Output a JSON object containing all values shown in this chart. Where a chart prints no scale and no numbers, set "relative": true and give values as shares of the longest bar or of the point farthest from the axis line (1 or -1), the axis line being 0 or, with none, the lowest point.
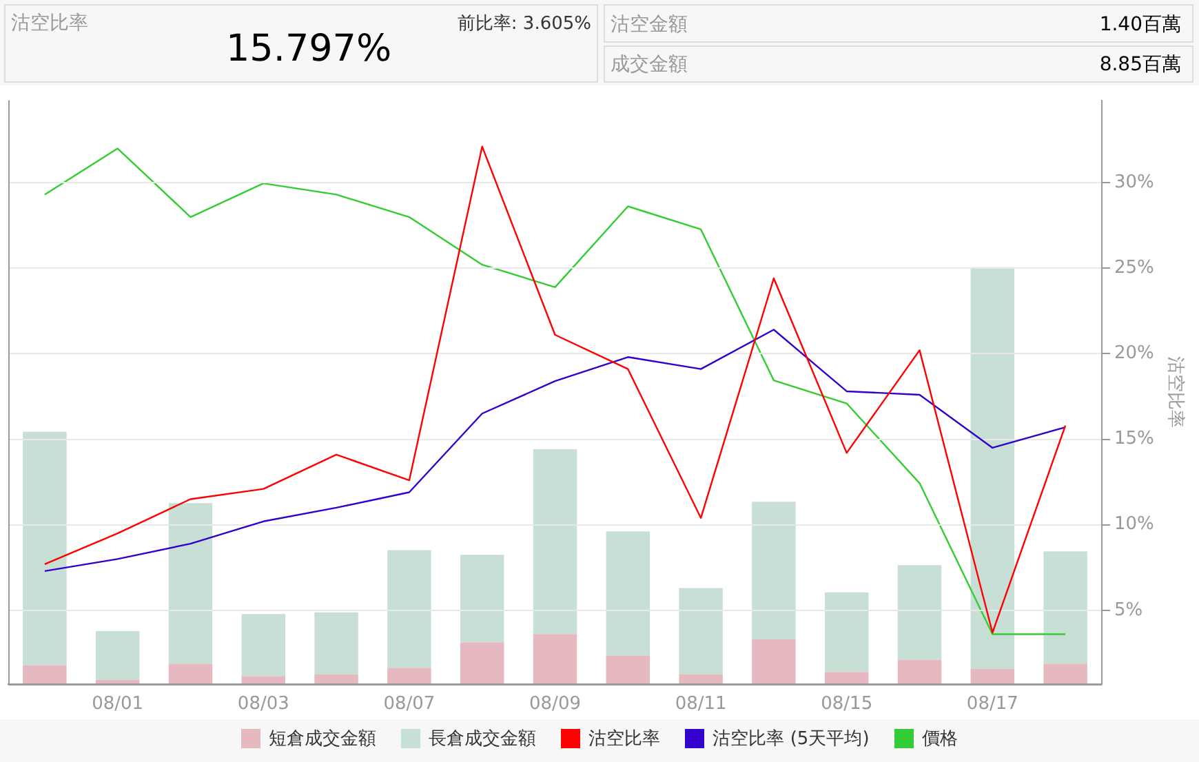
{
  "chart_data": [
    {
      "type": "line",
      "annotations": [
        "沽空比率",
        "15.797%",
        "前比率: 3.605%",
        "沽空金額",
        "1.40百萬",
        "成交金額",
        "8.85百萬"
      ],
      "y2label": "沽空比率",
      "categories": [
        null,
        "08/01",
        null,
        "08/03",
        null,
        "08/07",
        null,
        "08/09",
        null,
        "08/11",
        null,
        "08/15",
        null,
        "08/17",
        null
      ],
      "series": [
        {
          "name": "沽空比率",
          "axis": "y2",
          "color": "#ff0000",
          "values": [
            7.7,
            9.5,
            11.5,
            12.1,
            14.1,
            12.6,
            32.1,
            21.1,
            19.1,
            10.4,
            24.4,
            14.2,
            20.2,
            3.7,
            15.8
          ]
        },
        {
          "name": "沽空比率 (5天平均)",
          "axis": "y2",
          "color": "#3300cc",
          "values": [
            7.3,
            8.0,
            8.9,
            10.2,
            11.0,
            11.9,
            16.5,
            18.4,
            19.8,
            19.1,
            21.4,
            17.8,
            17.6,
            14.5,
            15.7
          ]
        }
      ],
      "y2lim": [
        0.7,
        34.8
      ],
      "y2ticks": [
        {
          "value": 5,
          "label": "5%"
        },
        {
          "value": 10,
          "label": "10%"
        },
        {
          "value": 15,
          "label": "15%"
        },
        {
          "value": 20,
          "label": "20%"
        },
        {
          "value": 25,
          "label": "25%"
        },
        {
          "value": 30,
          "label": "30%"
        }
      ],
      "grid": "y",
      "legend": "bottom",
      "marker": "none",
      "line_style": "solid"
    },
    {
      "type": "bar",
      "stacked": true,
      "relative": true,
      "tick_labels": false,
      "legend": "bottom",
      "categories": [
        null,
        null,
        null,
        null,
        null,
        null,
        null,
        null,
        null,
        null,
        null,
        null,
        null,
        null,
        null
      ],
      "series": [
        {
          "name": "短倉成交金額",
          "color": "#e6b8c0",
          "values": [
            0.045,
            0.01,
            0.049,
            0.019,
            0.023,
            0.039,
            0.1,
            0.12,
            0.068,
            0.023,
            0.107,
            0.029,
            0.058,
            0.036,
            0.049
          ]
        },
        {
          "name": "長倉成交金額",
          "color": "#c8dfd6",
          "values": [
            0.56,
            0.117,
            0.385,
            0.149,
            0.149,
            0.282,
            0.21,
            0.443,
            0.298,
            0.207,
            0.33,
            0.191,
            0.227,
            0.964,
            0.269
          ]
        }
      ]
    },
    {
      "type": "line",
      "relative": true,
      "tick_labels": false,
      "legend": "bottom",
      "categories": [
        null,
        null,
        null,
        null,
        null,
        null,
        null,
        null,
        null,
        null,
        null,
        null,
        null,
        null,
        null
      ],
      "series": [
        {
          "name": "價格",
          "color": "#33cc33",
          "values": [
            0.914,
            1,
            0.872,
            0.935,
            0.914,
            0.872,
            0.783,
            0.741,
            0.892,
            0.849,
            0.567,
            0.524,
            0.375,
            0.093,
            0.093
          ]
        }
      ]
    }
  ]
}
